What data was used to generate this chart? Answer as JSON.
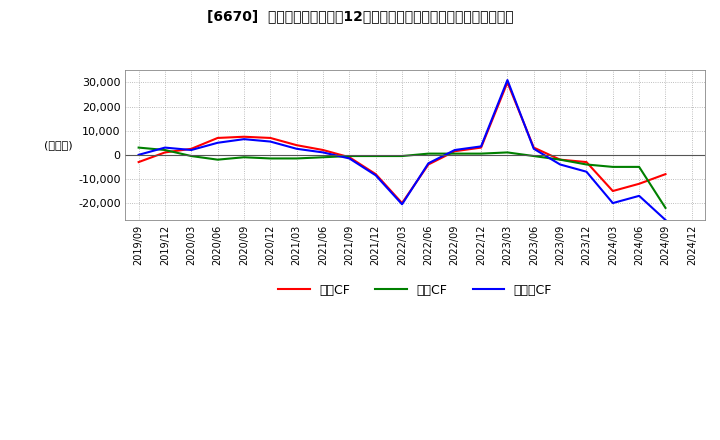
{
  "title": "[6670]  キャッシュフローの12か月移動合計の対前年同期増減額の推移",
  "ylabel": "(百万円)",
  "ylim": [
    -27000,
    35000
  ],
  "yticks": [
    -20000,
    -10000,
    0,
    10000,
    20000,
    30000
  ],
  "background_color": "#ffffff",
  "plot_background": "#ffffff",
  "grid_color": "#aaaaaa",
  "x_labels": [
    "2019/09",
    "2019/12",
    "2020/03",
    "2020/06",
    "2020/09",
    "2020/12",
    "2021/03",
    "2021/06",
    "2021/09",
    "2021/12",
    "2022/03",
    "2022/06",
    "2022/09",
    "2022/12",
    "2023/03",
    "2023/06",
    "2023/09",
    "2023/12",
    "2024/03",
    "2024/06",
    "2024/09",
    "2024/12"
  ],
  "operating_cf": [
    -3000,
    1000,
    2500,
    7000,
    7500,
    7000,
    4000,
    2000,
    -1000,
    -8000,
    -20000,
    -4000,
    1500,
    3000,
    30000,
    3000,
    -2000,
    -3000,
    -15000,
    -12000,
    -8000,
    null
  ],
  "investing_cf": [
    3000,
    2000,
    -500,
    -2000,
    -1000,
    -1500,
    -1500,
    -1000,
    -500,
    -500,
    -500,
    500,
    500,
    500,
    1000,
    -500,
    -2000,
    -4000,
    -5000,
    -5000,
    -22000,
    null
  ],
  "free_cf": [
    0,
    3000,
    2000,
    5000,
    6500,
    5500,
    2500,
    1000,
    -1500,
    -8500,
    -20500,
    -3500,
    2000,
    3500,
    31000,
    2500,
    -4000,
    -7000,
    -20000,
    -17000,
    -27000,
    null
  ],
  "operating_color": "#ff0000",
  "investing_color": "#008000",
  "free_color": "#0000ff",
  "legend_labels": [
    "営業CF",
    "投賃CF",
    "フリーCF"
  ]
}
